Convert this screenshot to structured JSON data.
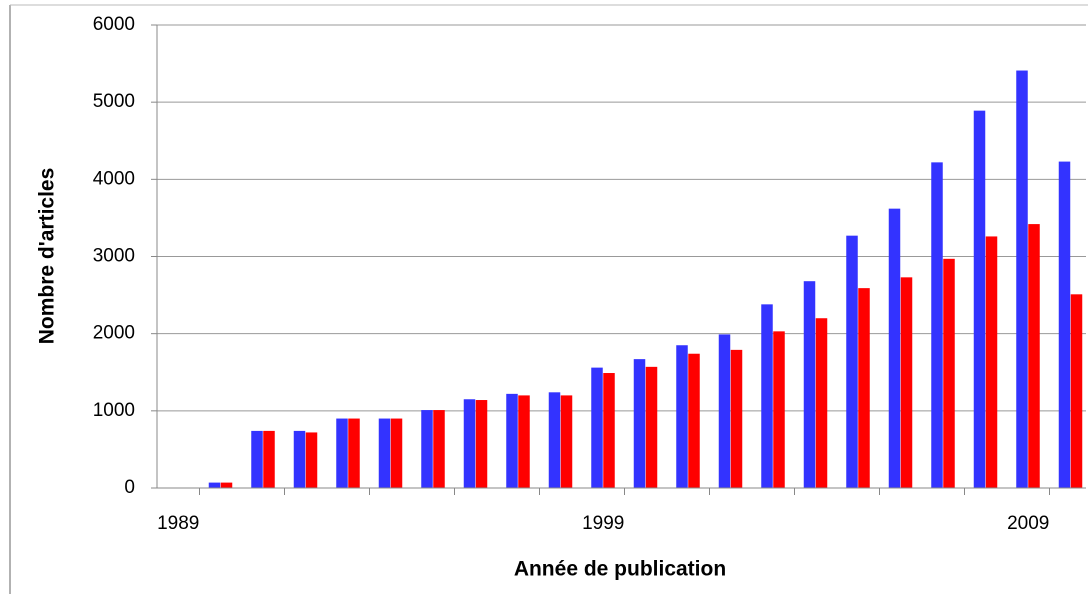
{
  "chart_data": {
    "type": "bar",
    "xlabel": "Année de publication",
    "ylabel": "Nombre d'articles",
    "categories": [
      "1989",
      null,
      null,
      null,
      null,
      null,
      null,
      null,
      null,
      null,
      "1999",
      null,
      null,
      null,
      null,
      null,
      null,
      null,
      null,
      null,
      "2009",
      null
    ],
    "series": [
      {
        "color": "#3333ff",
        "values": [
          0,
          70,
          740,
          740,
          900,
          900,
          1010,
          1150,
          1220,
          1240,
          1560,
          1670,
          1850,
          1990,
          2380,
          2680,
          3270,
          3620,
          4220,
          4890,
          5410,
          4230
        ]
      },
      {
        "color": "#ff0000",
        "values": [
          0,
          70,
          740,
          720,
          900,
          900,
          1010,
          1140,
          1200,
          1200,
          1490,
          1570,
          1740,
          1790,
          2030,
          2200,
          2590,
          2730,
          2970,
          3260,
          3420,
          2510
        ]
      }
    ],
    "ylim": [
      0,
      6000
    ],
    "yticks": [
      0,
      1000,
      2000,
      3000,
      4000,
      5000,
      6000
    ],
    "grid": true
  }
}
